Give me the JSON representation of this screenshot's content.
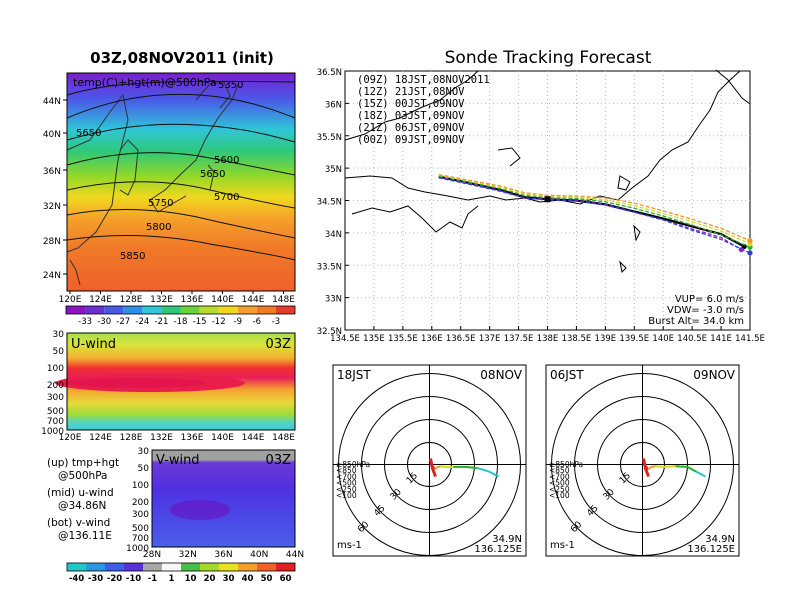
{
  "left": {
    "title": "03Z,08NOV2011  (init)",
    "map_label": "temp(C)+hgt(m)@500hPa",
    "contour_labels": [
      "5350",
      "5650",
      "5600",
      "5650",
      "5700",
      "5750",
      "5800",
      "5850"
    ],
    "lat_ticks": [
      "44N",
      "40N",
      "36N",
      "32N",
      "28N",
      "24N"
    ],
    "lon_ticks": [
      "120E",
      "124E",
      "128E",
      "132E",
      "136E",
      "140E",
      "144E",
      "148E"
    ],
    "temp_colorbar": [
      "-33",
      "-30",
      "-27",
      "-24",
      "-21",
      "-18",
      "-15",
      "-12",
      "-9",
      "-6",
      "-3"
    ],
    "uwind_label": "U-wind",
    "uwind_time": "03Z",
    "vwind_label": "V-wind",
    "vwind_time": "03Z",
    "pressure_ticks": [
      "30",
      "50",
      "100",
      "200",
      "300",
      "500",
      "700",
      "1000"
    ],
    "vwind_x_ticks": [
      "28N",
      "32N",
      "36N",
      "40N",
      "44N"
    ],
    "wind_colorbar": [
      "-40",
      "-30",
      "-20",
      "-10",
      "-1",
      "1",
      "10",
      "20",
      "30",
      "40",
      "50",
      "60"
    ],
    "legend_lines": [
      [
        "(up) tmp+hgt",
        "@500hPa"
      ],
      [
        "(mid) u-wind",
        "@34.86N"
      ],
      [
        "(bot) v-wind",
        "@136.11E"
      ]
    ]
  },
  "right": {
    "title": "Sonde Tracking Forecast",
    "x_ticks": [
      "134.5E",
      "135E",
      "135.5E",
      "136E",
      "136.5E",
      "137E",
      "137.5E",
      "138E",
      "138.5E",
      "139E",
      "139.5E",
      "140E",
      "140.5E",
      "141E",
      "141.5E"
    ],
    "y_ticks": [
      "36.5N",
      "36N",
      "35.5N",
      "35N",
      "34.5N",
      "34N",
      "33.5N",
      "33N",
      "32.5N"
    ],
    "runs": [
      {
        "label": "(09Z)  18JST,08NOV2011",
        "color": "#000000"
      },
      {
        "label": "(12Z)  21JST,08NOV",
        "color": "#9b1fcf"
      },
      {
        "label": "(15Z)  00JST,09NOV",
        "color": "#2d3ce6"
      },
      {
        "label": "(18Z)  03JST,09NOV",
        "color": "#22b422"
      },
      {
        "label": "(21Z)  06JST,09NOV",
        "color": "#d8d82a"
      },
      {
        "label": "(00Z)  09JST,09NOV",
        "color": "#f09628"
      }
    ],
    "params": [
      "VUP=  6.0  m/s",
      "VDW= -3.0  m/s",
      "Burst Alt=  34.0  km"
    ]
  },
  "hodographs": [
    {
      "time": "18JST",
      "date": "08NOV",
      "lat": "34.9N",
      "lon": "136.125E",
      "unit": "ms-1"
    },
    {
      "time": "06JST",
      "date": "09NOV",
      "lat": "34.9N",
      "lon": "136.125E",
      "unit": "ms-1"
    }
  ],
  "hodo_rings": [
    "15",
    "30",
    "45",
    "60"
  ],
  "hodo_levels": [
    {
      "label": "≥850hPa",
      "color": "#e02020"
    },
    {
      "label": "<850",
      "color": "#f0a020"
    },
    {
      "label": "<700",
      "color": "#d8d820"
    },
    {
      "label": "<500",
      "color": "#22b422"
    },
    {
      "label": "<250",
      "color": "#20c8c8"
    },
    {
      "label": "<100",
      "color": "#2040e0"
    }
  ],
  "chart_data": [
    {
      "type": "heatmap",
      "title": "03Z,08NOV2011  (init)",
      "subtitle": "temp(C)+hgt(m)@500hPa",
      "xlim": [
        120,
        150
      ],
      "ylim": [
        22,
        47
      ],
      "colorbar": [
        -33,
        -30,
        -27,
        -24,
        -21,
        -18,
        -15,
        -12,
        -9,
        -6,
        -3
      ],
      "contours_m": [
        5350,
        5650,
        5600,
        5650,
        5700,
        5750,
        5800,
        5850
      ]
    },
    {
      "type": "heatmap",
      "title": "U-wind",
      "xlim": [
        120,
        150
      ],
      "y_levels_hPa": [
        30,
        50,
        100,
        200,
        300,
        500,
        700,
        1000
      ]
    },
    {
      "type": "heatmap",
      "title": "V-wind",
      "xlim": [
        28,
        44
      ],
      "y_levels_hPa": [
        30,
        50,
        100,
        200,
        300,
        500,
        700,
        1000
      ],
      "colorbar": [
        -40,
        -30,
        -20,
        -10,
        -1,
        1,
        10,
        20,
        30,
        40,
        50,
        60
      ]
    },
    {
      "type": "line",
      "title": "Sonde Tracking Forecast",
      "xlim": [
        134.5,
        141.5
      ],
      "ylim": [
        32.5,
        36.5
      ],
      "series": [
        {
          "name": "(09Z)  18JST,08NOV2011",
          "x": [
            136.12,
            136.6,
            137.2,
            137.6,
            138.0,
            138.5,
            139.0,
            139.5,
            140.0,
            140.5,
            141.0,
            141.4
          ],
          "y": [
            34.87,
            34.78,
            34.66,
            34.55,
            34.52,
            34.5,
            34.44,
            34.33,
            34.22,
            34.1,
            33.98,
            33.79
          ]
        },
        {
          "name": "(12Z)  21JST,08NOV",
          "x": [
            136.12,
            136.6,
            137.2,
            137.6,
            138.0,
            138.5,
            139.0,
            139.5,
            140.0,
            140.5,
            141.0,
            141.35
          ],
          "y": [
            34.86,
            34.77,
            34.65,
            34.54,
            34.52,
            34.5,
            34.44,
            34.32,
            34.2,
            34.06,
            33.93,
            33.74
          ]
        },
        {
          "name": "(15Z)  00JST,09NOV",
          "x": [
            136.12,
            136.6,
            137.2,
            137.6,
            138.0,
            138.5,
            139.0,
            139.5,
            140.0,
            140.5,
            141.0,
            141.5
          ],
          "y": [
            34.85,
            34.76,
            34.64,
            34.54,
            34.51,
            34.49,
            34.43,
            34.32,
            34.2,
            34.04,
            33.9,
            33.69
          ]
        },
        {
          "name": "(18Z)  03JST,09NOV",
          "x": [
            136.12,
            136.6,
            137.2,
            137.6,
            138.0,
            138.5,
            139.0,
            139.5,
            140.0,
            140.5,
            141.0,
            141.5
          ],
          "y": [
            34.88,
            34.79,
            34.68,
            34.58,
            34.55,
            34.53,
            34.48,
            34.38,
            34.26,
            34.12,
            33.97,
            33.78
          ]
        },
        {
          "name": "(21Z)  06JST,09NOV",
          "x": [
            136.12,
            136.6,
            137.2,
            137.6,
            138.0,
            138.5,
            139.0,
            139.5,
            140.0,
            140.5,
            141.0,
            141.5
          ],
          "y": [
            34.89,
            34.81,
            34.7,
            34.6,
            34.56,
            34.55,
            34.51,
            34.42,
            34.3,
            34.17,
            34.03,
            33.83
          ]
        },
        {
          "name": "(00Z)  09JST,09NOV",
          "x": [
            136.12,
            136.6,
            137.2,
            137.6,
            138.0,
            138.5,
            139.0,
            139.5,
            140.0,
            140.5,
            141.0,
            141.5
          ],
          "y": [
            34.9,
            34.82,
            34.72,
            34.62,
            34.58,
            34.57,
            34.54,
            34.46,
            34.34,
            34.21,
            34.07,
            33.88
          ]
        }
      ],
      "params": {
        "VUP_m_s": 6.0,
        "VDW_m_s": -3.0,
        "burst_alt_km": 34.0
      }
    }
  ]
}
